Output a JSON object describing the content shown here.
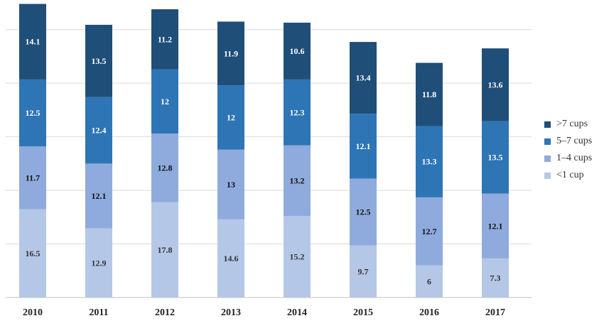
{
  "chart_data": {
    "type": "bar",
    "stacked": true,
    "categories": [
      "2010",
      "2011",
      "2012",
      "2013",
      "2014",
      "2015",
      "2016",
      "2017"
    ],
    "series": [
      {
        "name": "<1 cup",
        "color": "#b4c7e7",
        "label_color": "#333333",
        "values": [
          16.5,
          12.9,
          17.8,
          14.6,
          15.2,
          9.7,
          6,
          7.3
        ]
      },
      {
        "name": "1–4 cups",
        "color": "#8faadc",
        "label_color": "#111111",
        "values": [
          11.7,
          12.1,
          12.8,
          13,
          13.2,
          12.5,
          12.7,
          12.1
        ]
      },
      {
        "name": "5–7 cups",
        "color": "#2e75b6",
        "label_color": "#ffffff",
        "values": [
          12.5,
          12.4,
          12,
          12,
          12.3,
          12.1,
          13.3,
          13.5
        ]
      },
      {
        "name": ">7 cups",
        "color": "#1f4e79",
        "label_color": "#ffffff",
        "values": [
          14.1,
          13.5,
          11.2,
          11.9,
          10.6,
          13.4,
          11.8,
          13.6
        ]
      }
    ],
    "ylim": [
      0,
      55
    ],
    "yticks": [
      0,
      10,
      20,
      30,
      40,
      50
    ],
    "grid": true,
    "legend_position": "right",
    "legend_order": [
      ">7 cups",
      "5–7 cups",
      "1–4 cups",
      "<1 cup"
    ],
    "title": "",
    "xlabel": "",
    "ylabel": ""
  }
}
